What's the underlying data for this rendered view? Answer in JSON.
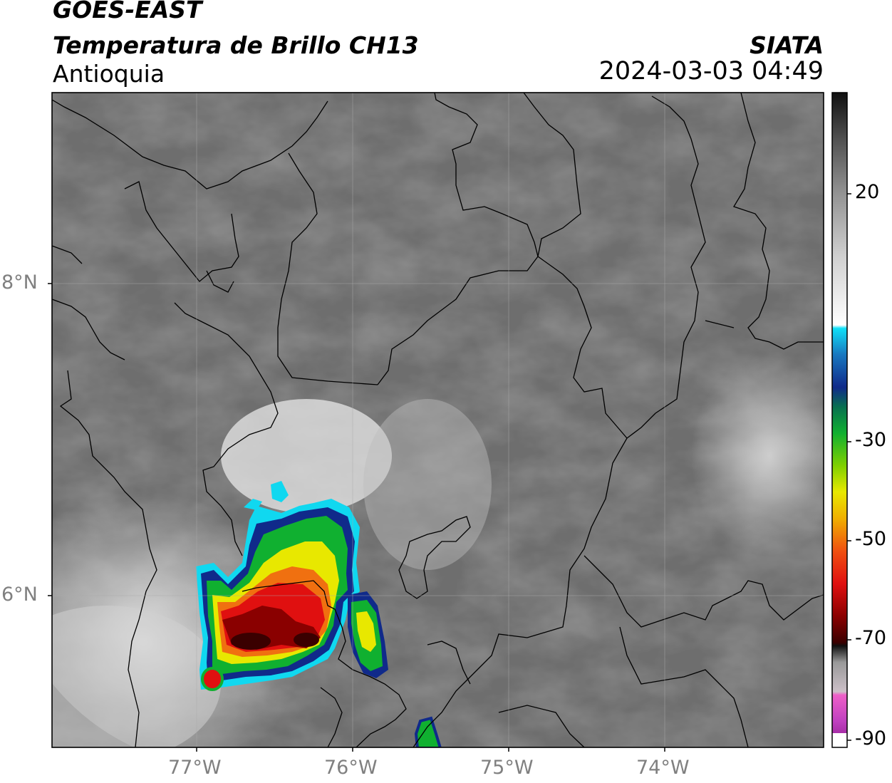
{
  "header": {
    "satellite": "GOES-EAST",
    "product": "Temperatura de Brillo CH13",
    "region": "Antioquia",
    "agency": "SIATA",
    "datetime": "2024-03-03 04:49"
  },
  "map": {
    "lon_labels": [
      "77°W",
      "76°W",
      "75°W",
      "74°W"
    ],
    "lat_labels": [
      "8°N",
      "6°N"
    ],
    "gridlines": true
  },
  "colorbar": {
    "ticks": [
      "20",
      "-30",
      "-50",
      "-70",
      "-90"
    ],
    "range": [
      -90,
      40
    ]
  },
  "colors": {
    "frame": "#000000",
    "tick_label_gray": "#808080",
    "storm_core": "#7a0000",
    "storm_red": "#e01010",
    "storm_yellow": "#f0e000",
    "storm_green": "#10b010",
    "storm_blue": "#1040a0",
    "storm_cyan": "#10d8f0"
  }
}
